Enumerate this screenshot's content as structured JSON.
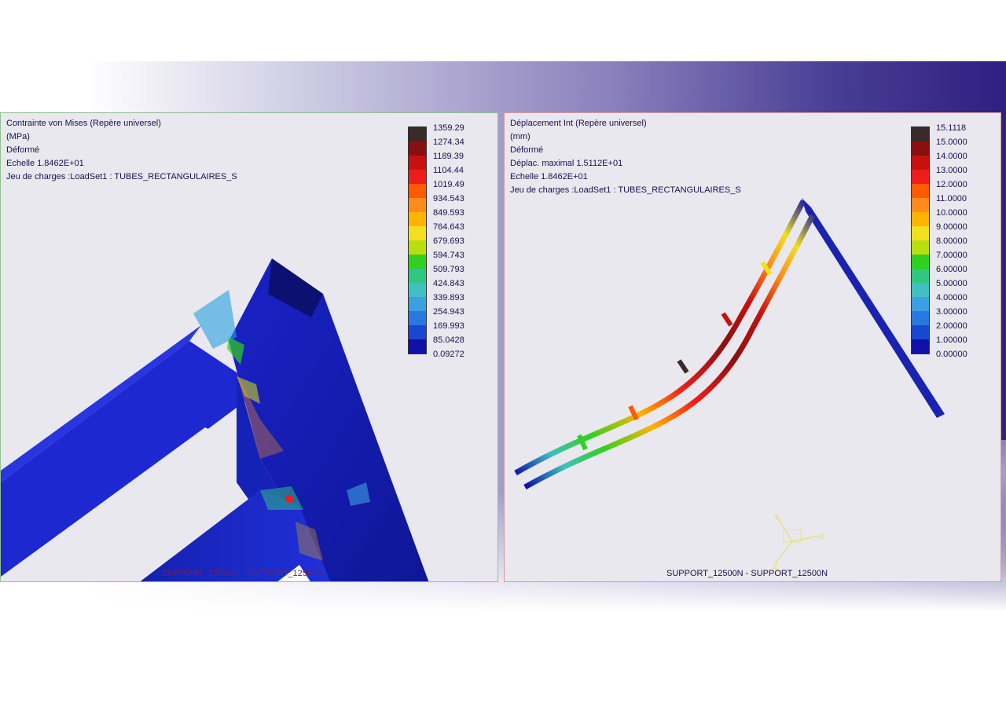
{
  "left_panel": {
    "info": {
      "line1": "Contrainte von Mises (Repère universel)",
      "line2": "(MPa)",
      "line3": "Déformé",
      "line4": "Echelle  1.8462E+01",
      "line5": "Jeu de charges :LoadSet1 :  TUBES_RECTANGULAIRES_S"
    },
    "legend": {
      "values": [
        "1359.29",
        "1274.34",
        "1189.39",
        "1104.44",
        "1019.49",
        "934.543",
        "849.593",
        "764.643",
        "679.693",
        "594.743",
        "509.793",
        "424.843",
        "339.893",
        "254.943",
        "169.993",
        "85.0428",
        "0.09272"
      ]
    },
    "caption": "SUPPORT_12500N - SUPPORT_12500N"
  },
  "right_panel": {
    "info": {
      "line1": "Déplacement Int (Repère universel)",
      "line2": "(mm)",
      "line3": "Déformé",
      "line4": "Déplac. maximal  1.5112E+01",
      "line5": "Echelle  1.8462E+01",
      "line6": "Jeu de charges :LoadSet1 :  TUBES_RECTANGULAIRES_S"
    },
    "legend": {
      "values": [
        "15.1118",
        "15.0000",
        "14.0000",
        "13.0000",
        "12.0000",
        "11.0000",
        "10.0000",
        "9.00000",
        "8.00000",
        "7.00000",
        "6.00000",
        "5.00000",
        "4.00000",
        "3.00000",
        "2.00000",
        "1.00000",
        "0.00000"
      ]
    },
    "caption": "SUPPORT_12500N - SUPPORT_12500N"
  },
  "legend_colors": [
    "#3a2a2a",
    "#8a1010",
    "#c81010",
    "#f01c1c",
    "#ff5a00",
    "#ff8c1a",
    "#ffb400",
    "#f0e020",
    "#b8e010",
    "#30d020",
    "#30c880",
    "#40c0c0",
    "#3aa0e0",
    "#2878e0",
    "#1848d0",
    "#1010a8"
  ],
  "icons": {
    "triad": "coordinate-triad-icon"
  }
}
